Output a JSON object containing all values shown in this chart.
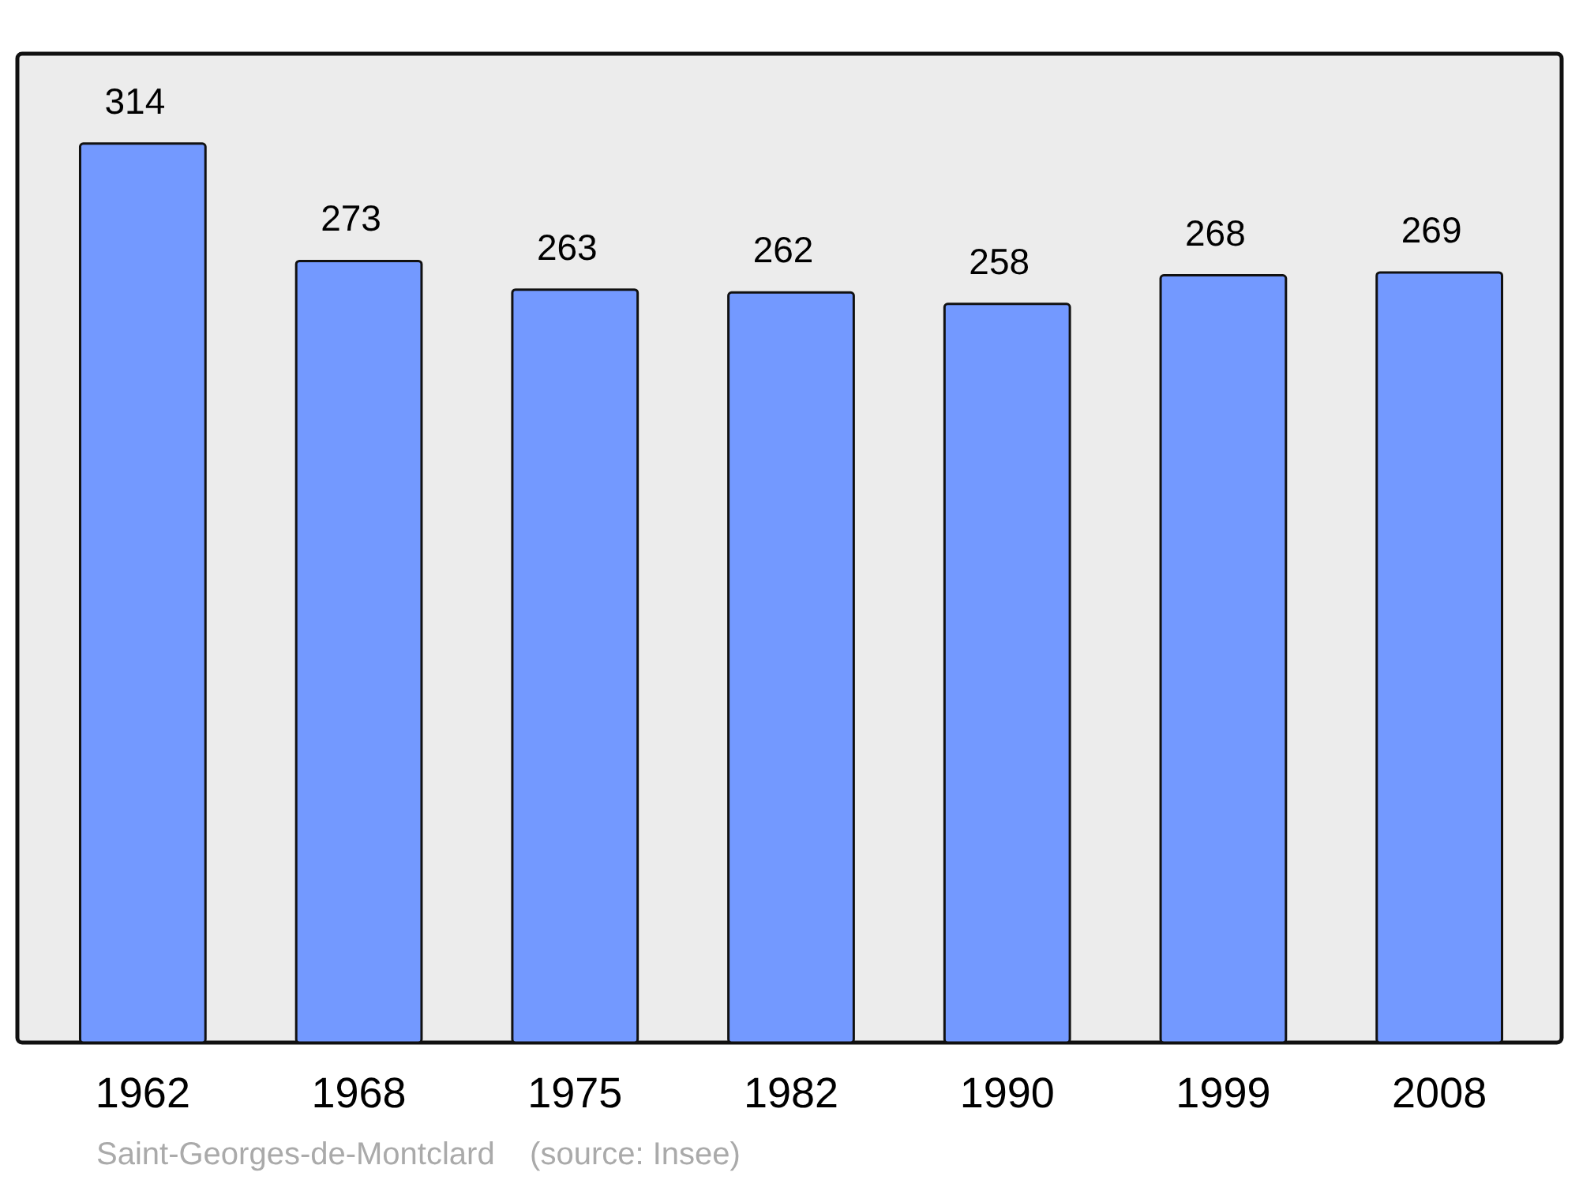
{
  "chart_data": {
    "type": "bar",
    "categories": [
      "1962",
      "1968",
      "1975",
      "1982",
      "1990",
      "1999",
      "2008"
    ],
    "values": [
      314,
      273,
      263,
      262,
      258,
      268,
      269
    ],
    "color": "#7399ff",
    "data_labels": true,
    "tick_labels": "x",
    "annotations": [
      "Saint-Georges-de-Montclard    (source: Insee)"
    ]
  }
}
